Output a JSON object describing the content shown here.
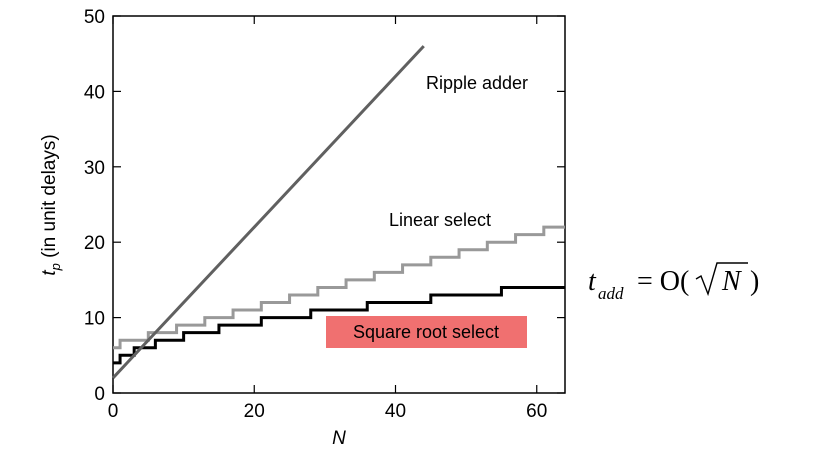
{
  "chart_data": {
    "type": "line",
    "xlabel": "N",
    "ylabel_main": "t",
    "ylabel_sub": "p",
    "ylabel_rest": " (in unit delays)",
    "xlim": [
      0,
      64
    ],
    "ylim": [
      0,
      50
    ],
    "xticks": [
      0,
      20,
      40,
      60
    ],
    "yticks": [
      0,
      10,
      20,
      30,
      40,
      50
    ],
    "grid": false,
    "series": [
      {
        "name": "Ripple adder",
        "style": "straight",
        "color": "#606060",
        "x": [
          0,
          44
        ],
        "y": [
          2,
          46
        ]
      },
      {
        "name": "Linear select",
        "style": "step",
        "color": "#999999",
        "x": [
          0,
          1,
          5,
          9,
          13,
          17,
          21,
          25,
          29,
          33,
          37,
          41,
          45,
          49,
          53,
          57,
          61,
          64
        ],
        "y": [
          6,
          7,
          8,
          9,
          10,
          11,
          12,
          13,
          14,
          15,
          16,
          17,
          18,
          19,
          20,
          21,
          22,
          22
        ]
      },
      {
        "name": "Square root select",
        "style": "step",
        "color": "#000000",
        "highlight": "#f07070",
        "x": [
          0,
          1,
          3,
          6,
          10,
          15,
          21,
          28,
          36,
          45,
          55,
          64
        ],
        "y": [
          4,
          5,
          6,
          7,
          8,
          9,
          10,
          11,
          12,
          13,
          14,
          14
        ]
      }
    ],
    "annotation": {
      "t": "t",
      "sub": "add",
      "eq": " = O(",
      "radicand": "N",
      "close": ")"
    }
  }
}
